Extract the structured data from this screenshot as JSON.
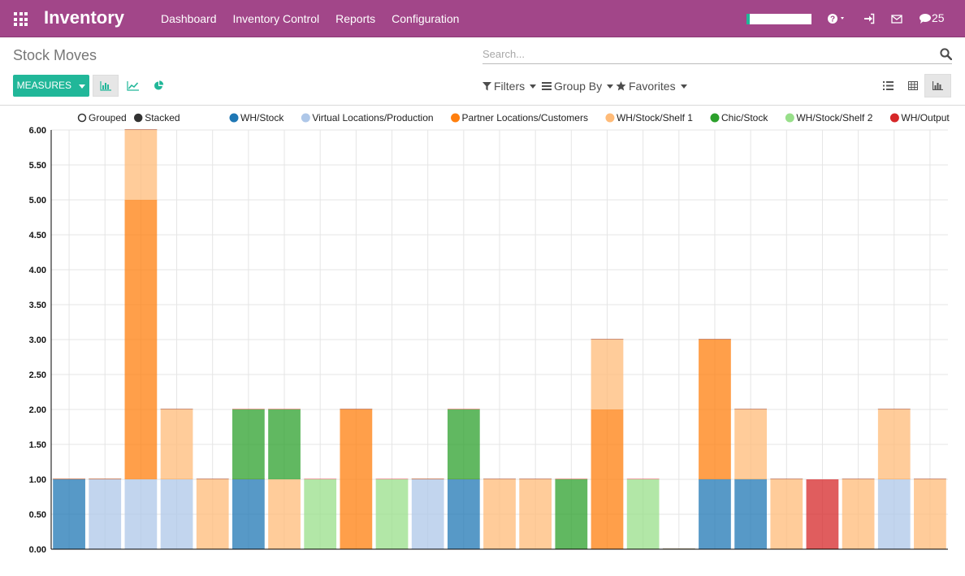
{
  "navbar": {
    "brand": "Inventory",
    "menu": [
      "Dashboard",
      "Inventory Control",
      "Reports",
      "Configuration"
    ],
    "chat_count": "25",
    "colors": {
      "bg": "#a24689",
      "accent": "#21b799"
    }
  },
  "control_panel": {
    "breadcrumb": "Stock Moves",
    "search_placeholder": "Search...",
    "measures_label": "MEASURES",
    "filters_label": "Filters",
    "groupby_label": "Group By",
    "favorites_label": "Favorites",
    "icons": [
      "bar-chart-icon",
      "line-chart-icon",
      "pie-chart-icon",
      "list-view-icon",
      "pivot-view-icon",
      "graph-view-icon"
    ]
  },
  "chart_data": {
    "type": "bar",
    "stacked": true,
    "mode_options": [
      {
        "label": "Grouped",
        "selected": false
      },
      {
        "label": "Stacked",
        "selected": true
      }
    ],
    "legend_position": "top",
    "grid": true,
    "ylim": [
      0,
      6
    ],
    "yticks": [
      "0.00",
      "0.50",
      "1.00",
      "1.50",
      "2.00",
      "2.50",
      "3.00",
      "3.50",
      "4.00",
      "4.50",
      "5.00",
      "5.50",
      "6.00"
    ],
    "categories": [
      "",
      "",
      "",
      "",
      "",
      "",
      "",
      "",
      "",
      "",
      "",
      "",
      "",
      "",
      "",
      "",
      "",
      "",
      "",
      "",
      "",
      "",
      "",
      "",
      ""
    ],
    "series": [
      {
        "name": "WH/Stock",
        "color": "#1f77b4",
        "values": [
          1,
          0,
          0,
          0,
          0,
          1,
          0,
          0,
          0,
          0,
          0,
          1,
          0,
          0,
          0,
          0,
          0,
          0,
          1,
          1,
          0,
          0,
          0,
          0,
          0
        ]
      },
      {
        "name": "Virtual Locations/Production",
        "color": "#aec7e8",
        "values": [
          0,
          1,
          1,
          1,
          0,
          0,
          0,
          0,
          0,
          0,
          1,
          0,
          0,
          0,
          0,
          0,
          0,
          0,
          0,
          0,
          0,
          0,
          0,
          1,
          0
        ]
      },
      {
        "name": "Partner Locations/Customers",
        "color": "#ff7f0e",
        "values": [
          0,
          0,
          4,
          0,
          0,
          0,
          0,
          0,
          2,
          0,
          0,
          0,
          0,
          0,
          0,
          2,
          0,
          0,
          2,
          0,
          0,
          0,
          0,
          0,
          0
        ]
      },
      {
        "name": "WH/Stock/Shelf 1",
        "color": "#ffbb78",
        "values": [
          0,
          0,
          1,
          1,
          1,
          0,
          1,
          0,
          0,
          0,
          0,
          0,
          1,
          1,
          0,
          1,
          0,
          0,
          0,
          1,
          1,
          0,
          1,
          1,
          1
        ]
      },
      {
        "name": "Chic/Stock",
        "color": "#2ca02c",
        "values": [
          0,
          0,
          0,
          0,
          0,
          1,
          1,
          0,
          0,
          0,
          0,
          1,
          0,
          0,
          1,
          0,
          0,
          0,
          0,
          0,
          0,
          0,
          0,
          0,
          0
        ]
      },
      {
        "name": "WH/Stock/Shelf 2",
        "color": "#98df8a",
        "values": [
          0,
          0,
          0,
          0,
          0,
          0,
          0,
          1,
          0,
          1,
          0,
          0,
          0,
          0,
          0,
          0,
          1,
          0,
          0,
          0,
          0,
          0,
          0,
          0,
          0
        ]
      },
      {
        "name": "WH/Output",
        "color": "#d62728",
        "values": [
          0,
          0,
          0,
          0,
          0,
          0,
          0,
          0,
          0,
          0,
          0,
          0,
          0,
          0,
          0,
          0,
          0,
          0,
          0,
          0,
          0,
          1,
          0,
          0,
          0
        ]
      }
    ]
  }
}
